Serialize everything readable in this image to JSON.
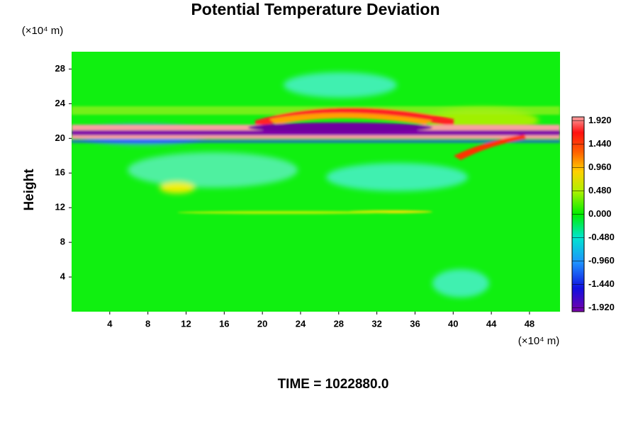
{
  "chart_data": {
    "type": "heatmap",
    "title": "Potential Temperature Deviation",
    "y_label": "Height",
    "x_unit": "(×10⁴ m)",
    "y_unit": "(×10⁴ m)",
    "footer": "TIME = 1022880.0",
    "xlim": [
      0,
      51.2
    ],
    "xticks": [
      4,
      8,
      12,
      16,
      20,
      24,
      28,
      32,
      36,
      40,
      44,
      48
    ],
    "ylim": [
      0,
      30
    ],
    "yticks": [
      4,
      8,
      12,
      16,
      20,
      24,
      28
    ],
    "colorbar": {
      "lim": [
        -2,
        2
      ],
      "ticks": [
        {
          "value": 1.92,
          "label": "1.920"
        },
        {
          "value": 1.44,
          "label": "1.440"
        },
        {
          "value": 0.96,
          "label": "0.960"
        },
        {
          "value": 0.48,
          "label": "0.480"
        },
        {
          "value": 0,
          "label": "0.000"
        },
        {
          "value": -0.48,
          "label": "-0.480"
        },
        {
          "value": -0.96,
          "label": "-0.960"
        },
        {
          "value": -1.44,
          "label": "-1.440"
        },
        {
          "value": -1.92,
          "label": "-1.920"
        }
      ]
    }
  }
}
